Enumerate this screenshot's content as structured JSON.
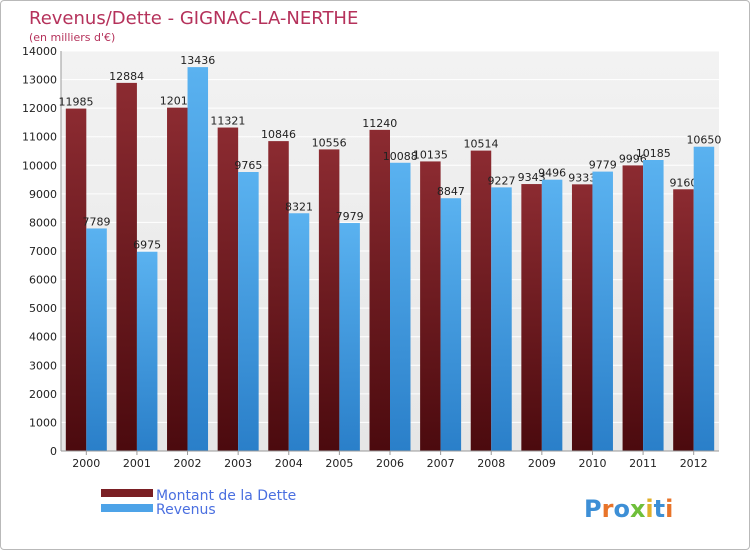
{
  "chart_data": {
    "type": "bar",
    "title": "Revenus/Dette - GIGNAC-LA-NERTHE",
    "subtitle": "(en milliers d'€)",
    "categories": [
      "2000",
      "2001",
      "2002",
      "2003",
      "2004",
      "2005",
      "2006",
      "2007",
      "2008",
      "2009",
      "2010",
      "2011",
      "2012"
    ],
    "series": [
      {
        "name": "Montant de la Dette",
        "color": "#7a1f24",
        "values": [
          11985,
          12884,
          12017,
          11321,
          10846,
          10556,
          11240,
          10135,
          10514,
          9343,
          9333,
          9996,
          9160
        ]
      },
      {
        "name": "Revenus",
        "color": "#4da3e8",
        "values": [
          7789,
          6975,
          13436,
          9765,
          8321,
          7979,
          10088,
          8847,
          9227,
          9496,
          9779,
          10185,
          10650
        ]
      }
    ],
    "ylim": [
      0,
      14000
    ],
    "yticks": [
      0,
      1000,
      2000,
      3000,
      4000,
      5000,
      6000,
      7000,
      8000,
      9000,
      10000,
      11000,
      12000,
      13000,
      14000
    ],
    "grid": true,
    "legend": "bottom-left"
  },
  "logo_text": "Proxiti"
}
